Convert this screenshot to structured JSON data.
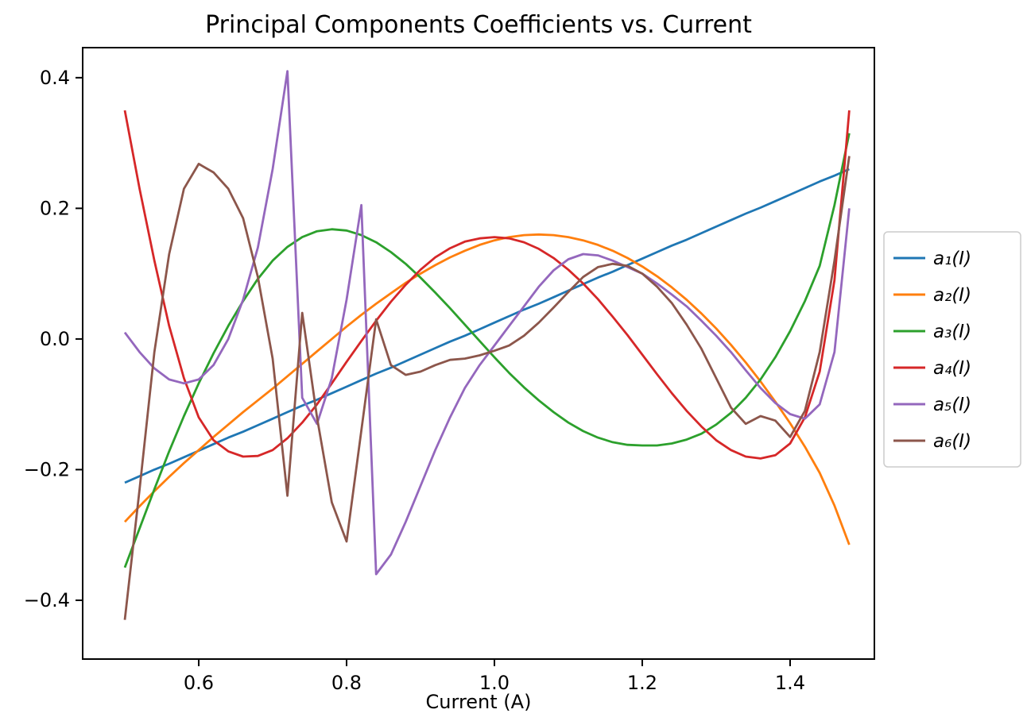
{
  "figure": {
    "background": "#ffffff"
  },
  "chart_data": {
    "type": "line",
    "title": "Principal Components Coefficients vs. Current",
    "xlabel": "Current (A)",
    "ylabel": "",
    "grid": false,
    "legend_position": "outside-right",
    "xlim": [
      0.443,
      1.514
    ],
    "ylim": [
      -0.49,
      0.446
    ],
    "xticks": {
      "values": [
        0.6,
        0.8,
        1.0,
        1.2,
        1.4
      ],
      "labels": [
        "0.6",
        "0.8",
        "1.0",
        "1.2",
        "1.4"
      ]
    },
    "yticks": {
      "values": [
        -0.4,
        -0.2,
        0.0,
        0.2,
        0.4
      ],
      "labels": [
        "−0.4",
        "−0.2",
        "0.0",
        "0.2",
        "0.4"
      ]
    },
    "x": [
      0.5,
      0.52,
      0.54,
      0.56,
      0.58,
      0.6,
      0.62,
      0.64,
      0.66,
      0.68,
      0.7,
      0.72,
      0.74,
      0.76,
      0.78,
      0.8,
      0.82,
      0.84,
      0.86,
      0.88,
      0.9,
      0.92,
      0.94,
      0.96,
      0.98,
      1.0,
      1.02,
      1.04,
      1.06,
      1.08,
      1.1,
      1.12,
      1.14,
      1.16,
      1.18,
      1.2,
      1.22,
      1.24,
      1.26,
      1.28,
      1.3,
      1.32,
      1.34,
      1.36,
      1.38,
      1.4,
      1.42,
      1.44,
      1.46,
      1.48
    ],
    "series": [
      {
        "name": "a₁(I)",
        "color": "#1f77b4",
        "values": [
          -0.22,
          -0.21,
          -0.2,
          -0.191,
          -0.181,
          -0.171,
          -0.161,
          -0.151,
          -0.142,
          -0.132,
          -0.122,
          -0.112,
          -0.102,
          -0.093,
          -0.083,
          -0.073,
          -0.063,
          -0.053,
          -0.044,
          -0.034,
          -0.024,
          -0.014,
          -0.004,
          0.005,
          0.015,
          0.025,
          0.035,
          0.045,
          0.054,
          0.064,
          0.074,
          0.084,
          0.094,
          0.103,
          0.113,
          0.123,
          0.133,
          0.143,
          0.152,
          0.162,
          0.172,
          0.182,
          0.192,
          0.201,
          0.211,
          0.221,
          0.231,
          0.241,
          0.25,
          0.26
        ]
      },
      {
        "name": "a₂(I)",
        "color": "#ff7f0e",
        "values": [
          -0.28,
          -0.256,
          -0.233,
          -0.211,
          -0.19,
          -0.17,
          -0.15,
          -0.131,
          -0.112,
          -0.094,
          -0.076,
          -0.057,
          -0.038,
          -0.019,
          0.0,
          0.019,
          0.037,
          0.054,
          0.07,
          0.086,
          0.1,
          0.113,
          0.125,
          0.135,
          0.144,
          0.151,
          0.156,
          0.159,
          0.16,
          0.159,
          0.156,
          0.151,
          0.144,
          0.135,
          0.124,
          0.111,
          0.096,
          0.079,
          0.06,
          0.039,
          0.016,
          -0.009,
          -0.036,
          -0.065,
          -0.096,
          -0.129,
          -0.165,
          -0.205,
          -0.255,
          -0.315
        ]
      },
      {
        "name": "a₃(I)",
        "color": "#2ca02c",
        "values": [
          -0.35,
          -0.29,
          -0.23,
          -0.172,
          -0.118,
          -0.068,
          -0.022,
          0.02,
          0.058,
          0.092,
          0.12,
          0.141,
          0.156,
          0.165,
          0.168,
          0.166,
          0.159,
          0.148,
          0.133,
          0.115,
          0.094,
          0.071,
          0.047,
          0.022,
          -0.003,
          -0.028,
          -0.052,
          -0.074,
          -0.094,
          -0.112,
          -0.128,
          -0.141,
          -0.151,
          -0.158,
          -0.162,
          -0.163,
          -0.163,
          -0.16,
          -0.154,
          -0.145,
          -0.131,
          -0.113,
          -0.09,
          -0.062,
          -0.028,
          0.012,
          0.058,
          0.112,
          0.205,
          0.315
        ]
      },
      {
        "name": "a₄(I)",
        "color": "#d62728",
        "values": [
          0.35,
          0.23,
          0.12,
          0.02,
          -0.06,
          -0.12,
          -0.155,
          -0.172,
          -0.18,
          -0.179,
          -0.17,
          -0.152,
          -0.128,
          -0.1,
          -0.068,
          -0.035,
          -0.003,
          0.028,
          0.057,
          0.083,
          0.106,
          0.125,
          0.139,
          0.149,
          0.154,
          0.156,
          0.154,
          0.148,
          0.138,
          0.124,
          0.106,
          0.085,
          0.061,
          0.034,
          0.006,
          -0.024,
          -0.054,
          -0.083,
          -0.11,
          -0.134,
          -0.155,
          -0.17,
          -0.18,
          -0.183,
          -0.178,
          -0.16,
          -0.12,
          -0.05,
          0.09,
          0.35
        ]
      },
      {
        "name": "a₅(I)",
        "color": "#9467bd",
        "values": [
          0.01,
          -0.02,
          -0.045,
          -0.062,
          -0.068,
          -0.062,
          -0.04,
          0.0,
          0.06,
          0.14,
          0.26,
          0.41,
          -0.09,
          -0.13,
          -0.06,
          0.06,
          0.205,
          -0.36,
          -0.33,
          -0.28,
          -0.225,
          -0.17,
          -0.12,
          -0.075,
          -0.04,
          -0.01,
          0.02,
          0.05,
          0.08,
          0.105,
          0.122,
          0.13,
          0.128,
          0.12,
          0.11,
          0.1,
          0.085,
          0.068,
          0.05,
          0.028,
          0.005,
          -0.02,
          -0.048,
          -0.075,
          -0.098,
          -0.115,
          -0.122,
          -0.1,
          -0.02,
          0.2
        ]
      },
      {
        "name": "a₆(I)",
        "color": "#8c564b",
        "values": [
          -0.43,
          -0.23,
          -0.02,
          0.13,
          0.23,
          0.268,
          0.255,
          0.23,
          0.185,
          0.095,
          -0.03,
          -0.24,
          0.04,
          -0.12,
          -0.25,
          -0.31,
          -0.14,
          0.03,
          -0.04,
          -0.055,
          -0.05,
          -0.04,
          -0.032,
          -0.03,
          -0.025,
          -0.018,
          -0.01,
          0.005,
          0.025,
          0.048,
          0.072,
          0.095,
          0.11,
          0.115,
          0.112,
          0.1,
          0.08,
          0.055,
          0.022,
          -0.015,
          -0.06,
          -0.105,
          -0.13,
          -0.118,
          -0.125,
          -0.15,
          -0.11,
          -0.02,
          0.12,
          0.28
        ]
      }
    ]
  }
}
